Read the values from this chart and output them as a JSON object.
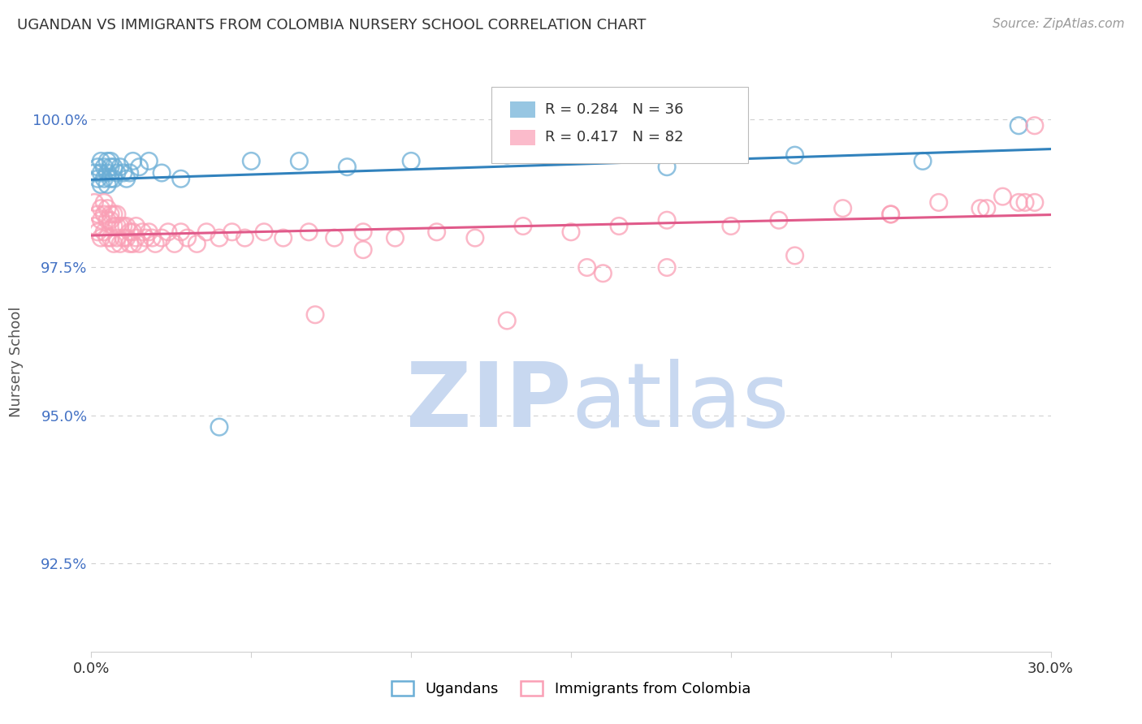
{
  "title": "UGANDAN VS IMMIGRANTS FROM COLOMBIA NURSERY SCHOOL CORRELATION CHART",
  "source": "Source: ZipAtlas.com",
  "ylabel": "Nursery School",
  "ytick_labels": [
    "92.5%",
    "95.0%",
    "97.5%",
    "100.0%"
  ],
  "ytick_values": [
    0.925,
    0.95,
    0.975,
    1.0
  ],
  "xlim": [
    0.0,
    0.3
  ],
  "ylim": [
    0.91,
    1.008
  ],
  "legend_blue_r": "R = 0.284",
  "legend_blue_n": "N = 36",
  "legend_pink_r": "R = 0.417",
  "legend_pink_n": "N = 82",
  "blue_color": "#6baed6",
  "pink_color": "#fa9fb5",
  "blue_line_color": "#3182bd",
  "pink_line_color": "#e05a8a",
  "watermark_zip_color": "#c8d8f0",
  "watermark_atlas_color": "#c8d8f0",
  "background_color": "#ffffff",
  "ugandan_points_x": [
    0.001,
    0.002,
    0.002,
    0.003,
    0.003,
    0.003,
    0.004,
    0.004,
    0.005,
    0.005,
    0.005,
    0.006,
    0.006,
    0.006,
    0.007,
    0.007,
    0.008,
    0.009,
    0.01,
    0.011,
    0.012,
    0.013,
    0.015,
    0.018,
    0.022,
    0.028,
    0.04,
    0.05,
    0.065,
    0.08,
    0.1,
    0.13,
    0.18,
    0.22,
    0.26,
    0.29
  ],
  "ugandan_points_y": [
    0.991,
    0.99,
    0.992,
    0.989,
    0.991,
    0.993,
    0.99,
    0.992,
    0.989,
    0.991,
    0.993,
    0.99,
    0.992,
    0.993,
    0.99,
    0.992,
    0.991,
    0.992,
    0.991,
    0.99,
    0.991,
    0.993,
    0.992,
    0.993,
    0.991,
    0.99,
    0.948,
    0.993,
    0.993,
    0.992,
    0.993,
    0.994,
    0.992,
    0.994,
    0.993,
    0.999
  ],
  "colombia_points_x": [
    0.001,
    0.001,
    0.002,
    0.002,
    0.003,
    0.003,
    0.003,
    0.004,
    0.004,
    0.004,
    0.005,
    0.005,
    0.005,
    0.006,
    0.006,
    0.006,
    0.007,
    0.007,
    0.007,
    0.008,
    0.008,
    0.008,
    0.009,
    0.009,
    0.01,
    0.01,
    0.011,
    0.011,
    0.012,
    0.012,
    0.013,
    0.013,
    0.014,
    0.014,
    0.015,
    0.016,
    0.017,
    0.018,
    0.019,
    0.02,
    0.022,
    0.024,
    0.026,
    0.028,
    0.03,
    0.033,
    0.036,
    0.04,
    0.044,
    0.048,
    0.054,
    0.06,
    0.068,
    0.076,
    0.085,
    0.095,
    0.108,
    0.12,
    0.135,
    0.15,
    0.165,
    0.18,
    0.2,
    0.215,
    0.235,
    0.25,
    0.265,
    0.278,
    0.285,
    0.292,
    0.07,
    0.16,
    0.22,
    0.155,
    0.29,
    0.28,
    0.295,
    0.25,
    0.085,
    0.18,
    0.13,
    0.295
  ],
  "colombia_points_y": [
    0.982,
    0.986,
    0.981,
    0.984,
    0.98,
    0.983,
    0.985,
    0.981,
    0.984,
    0.986,
    0.98,
    0.983,
    0.985,
    0.98,
    0.983,
    0.984,
    0.979,
    0.982,
    0.984,
    0.98,
    0.982,
    0.984,
    0.979,
    0.982,
    0.98,
    0.982,
    0.98,
    0.982,
    0.979,
    0.981,
    0.979,
    0.981,
    0.98,
    0.982,
    0.979,
    0.981,
    0.98,
    0.981,
    0.98,
    0.979,
    0.98,
    0.981,
    0.979,
    0.981,
    0.98,
    0.979,
    0.981,
    0.98,
    0.981,
    0.98,
    0.981,
    0.98,
    0.981,
    0.98,
    0.981,
    0.98,
    0.981,
    0.98,
    0.982,
    0.981,
    0.982,
    0.983,
    0.982,
    0.983,
    0.985,
    0.984,
    0.986,
    0.985,
    0.987,
    0.986,
    0.967,
    0.974,
    0.977,
    0.975,
    0.986,
    0.985,
    0.986,
    0.984,
    0.978,
    0.975,
    0.966,
    0.999
  ]
}
